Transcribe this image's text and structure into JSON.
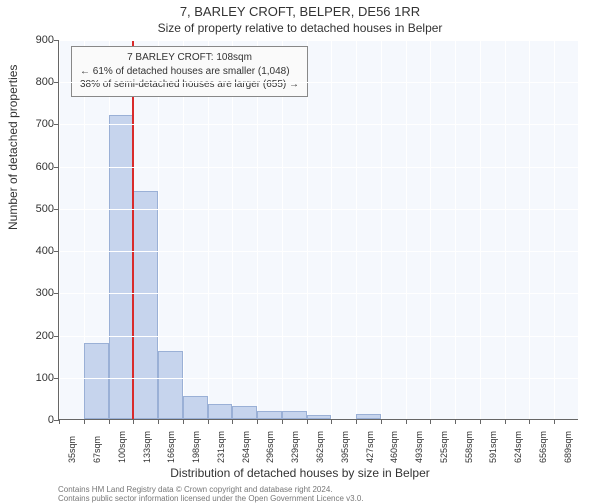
{
  "title": "7, BARLEY CROFT, BELPER, DE56 1RR",
  "subtitle": "Size of property relative to detached houses in Belper",
  "chart": {
    "type": "histogram",
    "background_color": "#f5f8fd",
    "grid_color": "#ffffff",
    "axis_color": "#666666",
    "bar_fill": "#c6d4ed",
    "bar_stroke": "#9ab0d6",
    "refline_color": "#d92b2b",
    "ylabel": "Number of detached properties",
    "xlabel": "Distribution of detached houses by size in Belper",
    "ylim": [
      0,
      900
    ],
    "ytick_step": 100,
    "x_categories": [
      "35sqm",
      "67sqm",
      "100sqm",
      "133sqm",
      "166sqm",
      "198sqm",
      "231sqm",
      "264sqm",
      "296sqm",
      "329sqm",
      "362sqm",
      "395sqm",
      "427sqm",
      "460sqm",
      "493sqm",
      "525sqm",
      "558sqm",
      "591sqm",
      "624sqm",
      "656sqm",
      "689sqm"
    ],
    "values": [
      0,
      180,
      720,
      540,
      160,
      55,
      35,
      30,
      20,
      20,
      10,
      0,
      12,
      0,
      0,
      0,
      0,
      0,
      0,
      0,
      0
    ],
    "reference_bin_index": 2,
    "infobox": {
      "line1": "7 BARLEY CROFT: 108sqm",
      "line2": "← 61% of detached houses are smaller (1,048)",
      "line3": "38% of semi-detached houses are larger (655) →",
      "border_color": "#888888",
      "bg_color": "#fafafa"
    },
    "title_fontsize": 13,
    "subtitle_fontsize": 12,
    "label_fontsize": 12,
    "tick_fontsize_y": 11,
    "tick_fontsize_x": 9,
    "infobox_fontsize": 10
  },
  "credits": {
    "line1": "Contains HM Land Registry data © Crown copyright and database right 2024.",
    "line2": "Contains public sector information licensed under the Open Government Licence v3.0."
  }
}
